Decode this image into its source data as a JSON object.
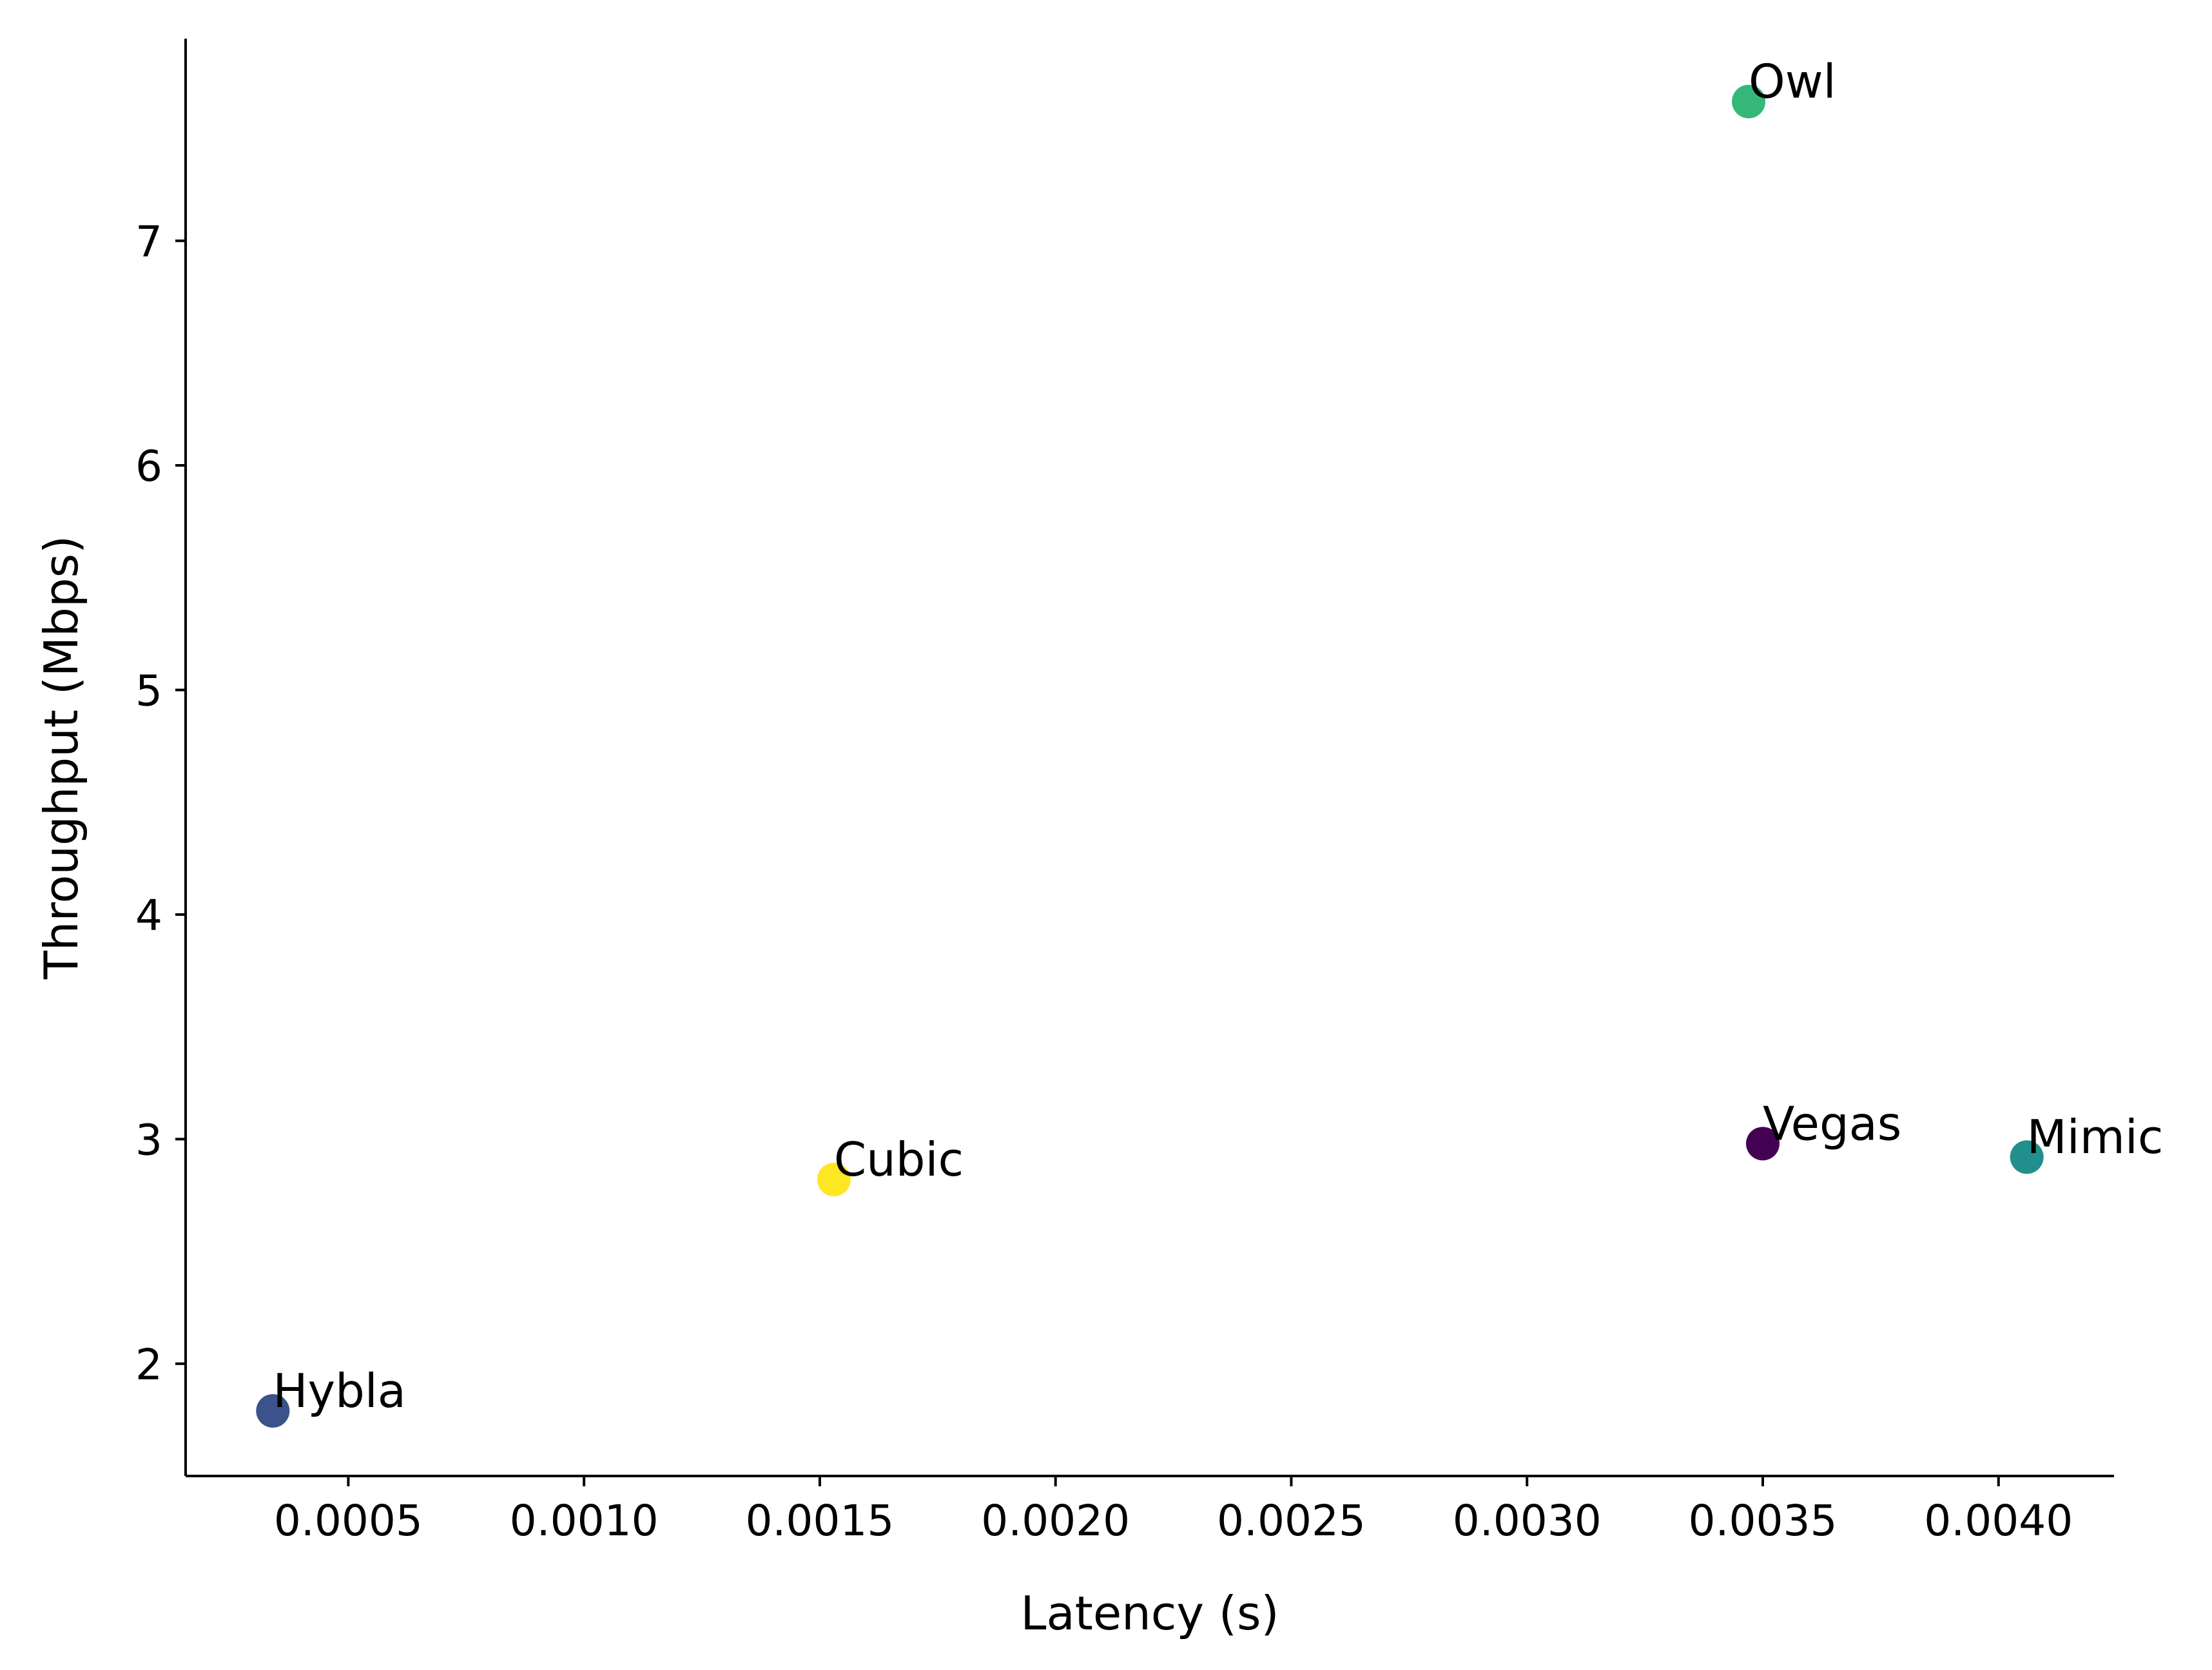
{
  "chart_data": {
    "type": "scatter",
    "title": "",
    "xlabel": "Latency (s)",
    "ylabel": "Throughput (Mbps)",
    "xlim": [
      0.000155,
      0.004245
    ],
    "ylim": [
      1.5,
      7.9
    ],
    "x_ticks": [
      0.0005,
      0.001,
      0.0015,
      0.002,
      0.0025,
      0.003,
      0.0035,
      0.004
    ],
    "x_tick_labels": [
      "0.0005",
      "0.0010",
      "0.0015",
      "0.0020",
      "0.0025",
      "0.0030",
      "0.0035",
      "0.0040"
    ],
    "y_ticks": [
      2,
      3,
      4,
      5,
      6,
      7
    ],
    "y_tick_labels": [
      "2",
      "3",
      "4",
      "5",
      "6",
      "7"
    ],
    "grid": false,
    "legend": "none",
    "points": [
      {
        "label": "Vegas",
        "x": 0.0035,
        "y": 2.98,
        "color": "#440154"
      },
      {
        "label": "Hybla",
        "x": 0.00034,
        "y": 1.79,
        "color": "#3b528b"
      },
      {
        "label": "Mimic",
        "x": 0.00406,
        "y": 2.92,
        "color": "#21908d"
      },
      {
        "label": "Owl",
        "x": 0.00347,
        "y": 7.62,
        "color": "#35b779"
      },
      {
        "label": "Cubic",
        "x": 0.00153,
        "y": 2.82,
        "color": "#fde725"
      }
    ]
  }
}
